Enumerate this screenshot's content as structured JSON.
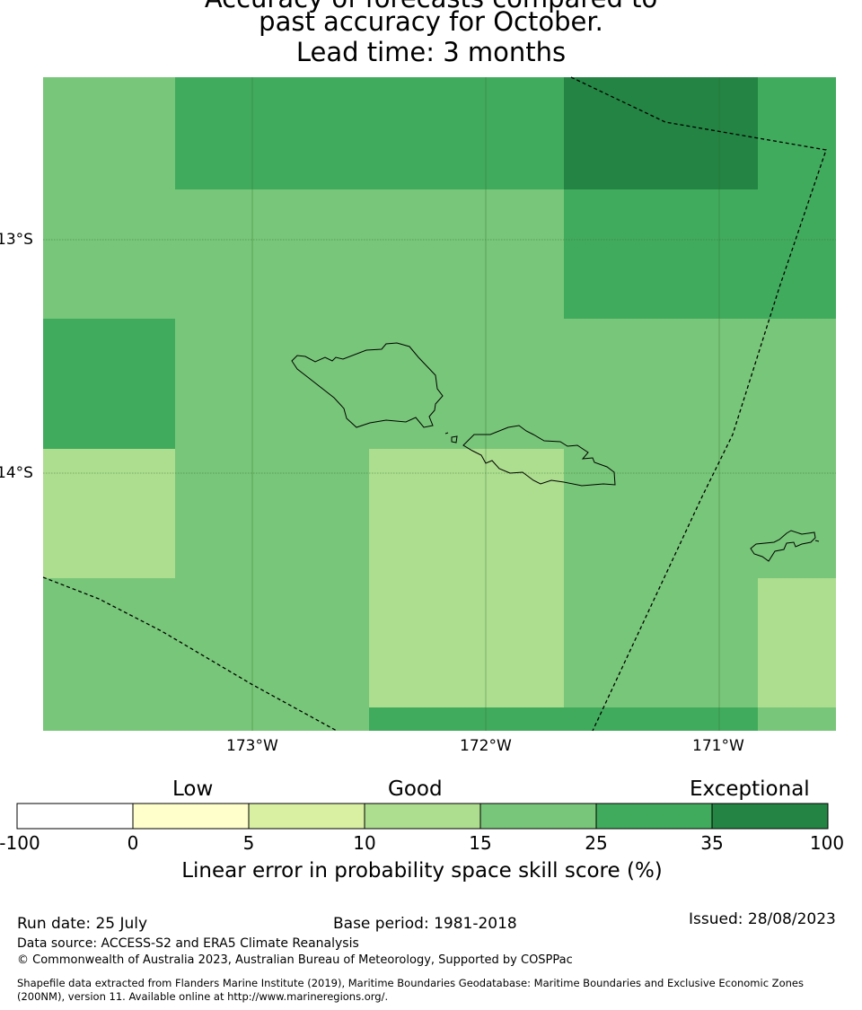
{
  "title": {
    "line1": "Accuracy of forecasts compared to",
    "line2": "past accuracy for October.",
    "line3": "Lead time: 3 months"
  },
  "map": {
    "latitude_labels": [
      "13°S",
      "14°S"
    ],
    "longitude_labels": [
      "173°W",
      "172°W",
      "171°W"
    ],
    "graticule": true,
    "eez_boundary_style": "dashed"
  },
  "colorbar": {
    "categories": [
      "Low",
      "Good",
      "Exceptional"
    ],
    "ticks": [
      "-100",
      "0",
      "5",
      "10",
      "15",
      "25",
      "35",
      "100"
    ],
    "colors": [
      "#ffffff",
      "#ffffcc",
      "#d9f0a3",
      "#addd8e",
      "#78c679",
      "#41ab5d",
      "#238443"
    ],
    "label": "Linear error in probability space skill score (%)"
  },
  "footer": {
    "run_date": "Run date: 25 July",
    "base_period": "Base period: 1981-2018",
    "issued": "Issued: 28/08/2023",
    "data_source": "Data source: ACCESS-S2 and ERA5 Climate Reanalysis",
    "copyright": "© Commonwealth of Australia 2023, Australian Bureau of Meteorology, Supported by COSPPac",
    "shapefile_line1": "Shapefile data extracted from Flanders Marine Institute (2019), Maritime Boundaries Geodatabase: Maritime Boundaries and Exclusive Economic Zones",
    "shapefile_line2": "(200NM), version 11. Available online at http://www.marineregions.org/."
  }
}
